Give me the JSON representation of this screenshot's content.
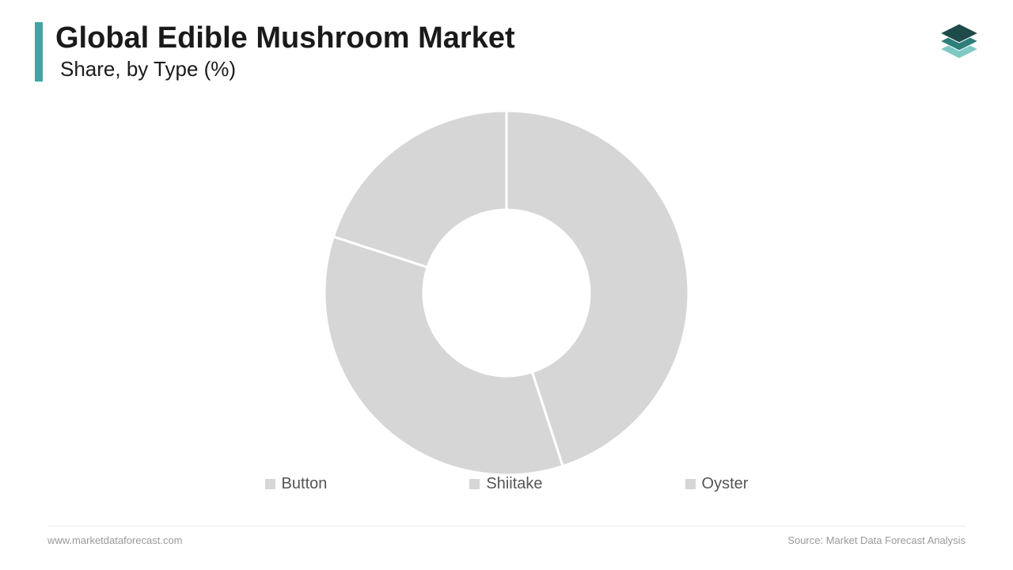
{
  "header": {
    "title": "Global Edible Mushroom Market",
    "subtitle": "Share, by Type (%)",
    "accent_color": "#3fa7a3"
  },
  "logo": {
    "layers": [
      {
        "fill": "#1e4b4a",
        "offset_y": 0
      },
      {
        "fill": "#2f7e7b",
        "offset_y": 10
      },
      {
        "fill": "#7fc9c5",
        "offset_y": 20
      }
    ]
  },
  "chart": {
    "type": "donut",
    "outer_radius": 230,
    "inner_radius": 105,
    "background_color": "#ffffff",
    "gap_color": "#ffffff",
    "gap_width": 3,
    "series": [
      {
        "label": "Button",
        "value": 45,
        "color": "#d6d6d6"
      },
      {
        "label": "Shiitake",
        "value": 35,
        "color": "#d6d6d6"
      },
      {
        "label": "Oyster",
        "value": 20,
        "color": "#d6d6d6"
      }
    ],
    "legend_text_color": "#555555",
    "legend_fontsize": 20
  },
  "footer": {
    "website": "www.marketdataforecast.com",
    "source": "Source: Market Data Forecast Analysis",
    "text_color": "#9a9a9a",
    "fontsize": 13
  }
}
